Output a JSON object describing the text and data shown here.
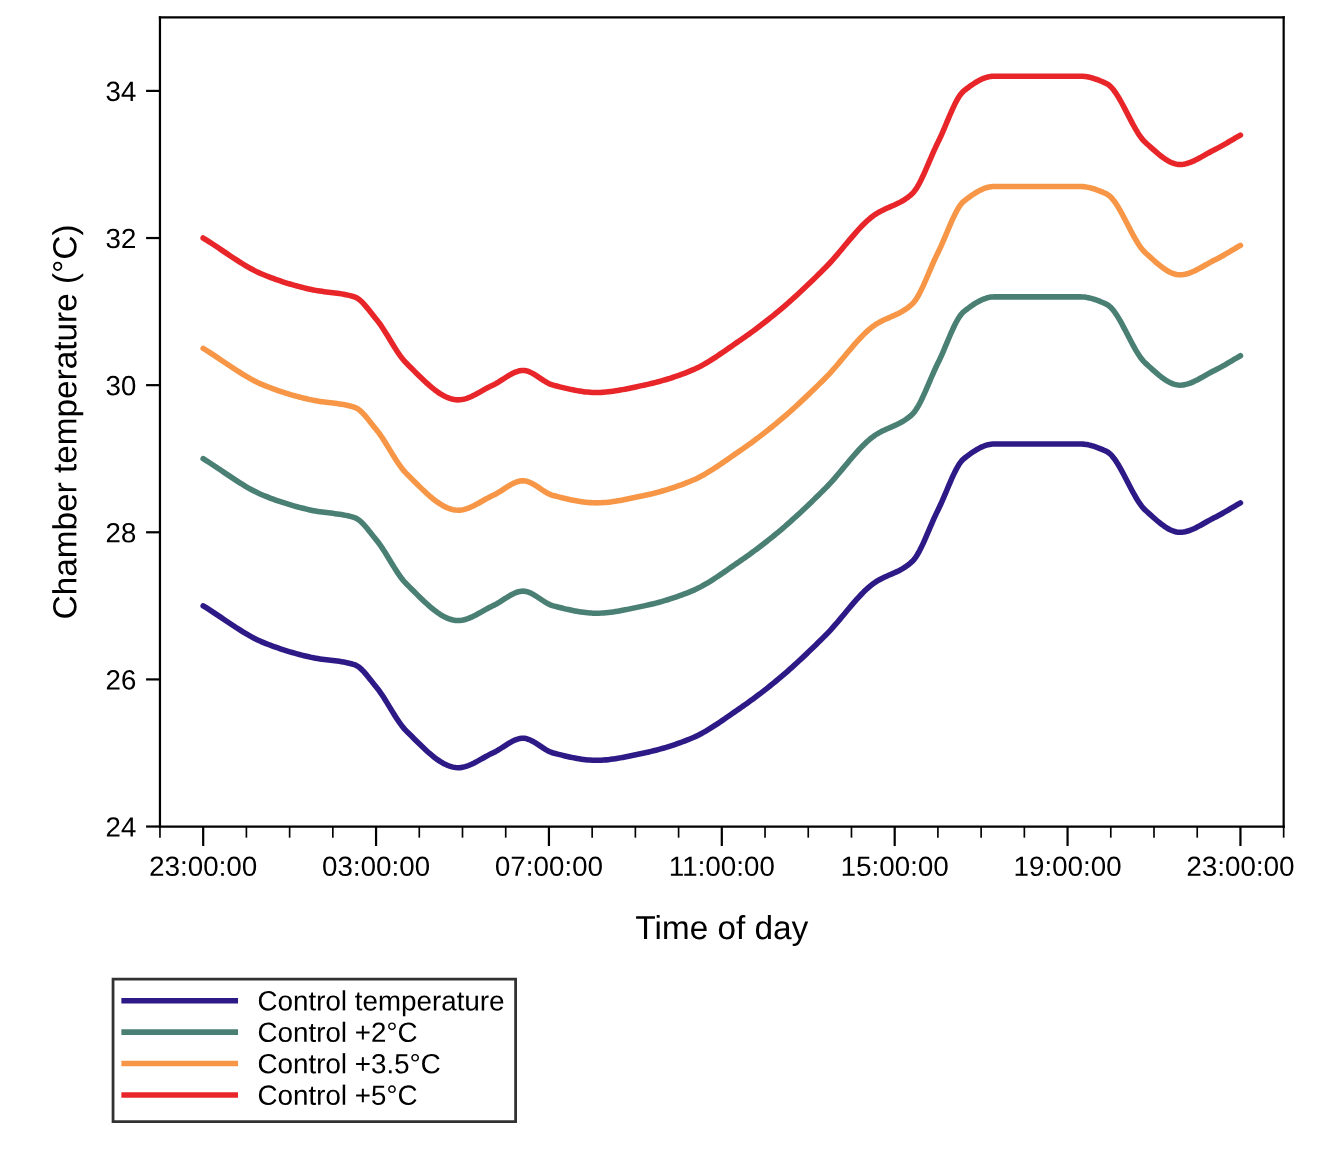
{
  "chart_data": {
    "type": "line",
    "xlabel": "Time of day",
    "ylabel": "Chamber temperature (°C)",
    "x": [
      "2000-01-01T23:00",
      "2000-01-02T00:24",
      "2000-01-02T01:30",
      "2000-01-02T02:30",
      "2000-01-02T03:00",
      "2000-01-02T03:42",
      "2000-01-02T04:54",
      "2000-01-02T05:42",
      "2000-01-02T06:24",
      "2000-01-02T07:06",
      "2000-01-02T08:06",
      "2000-01-02T09:12",
      "2000-01-02T10:18",
      "2000-01-02T11:24",
      "2000-01-02T12:18",
      "2000-01-02T13:24",
      "2000-01-02T14:30",
      "2000-01-02T15:24",
      "2000-01-02T16:00",
      "2000-01-02T16:36",
      "2000-01-02T17:18",
      "2000-01-02T18:21",
      "2000-01-02T19:18",
      "2000-01-02T19:54",
      "2000-01-02T20:48",
      "2000-01-02T21:36",
      "2000-01-02T22:24",
      "2000-01-02T23:00"
    ],
    "series": [
      {
        "name": "Control temperature",
        "color": "#2e1a87",
        "values": [
          27.0,
          26.5,
          26.3,
          26.2,
          25.9,
          25.3,
          24.8,
          25.0,
          25.2,
          25.0,
          24.9,
          25.0,
          25.2,
          25.6,
          26.0,
          26.6,
          27.3,
          27.6,
          28.3,
          29.0,
          29.2,
          29.2,
          29.2,
          29.1,
          28.3,
          28.0,
          28.2,
          28.4
        ]
      },
      {
        "name": "Control +2°C",
        "color": "#4a7f74",
        "values": [
          29.0,
          28.5,
          28.3,
          28.2,
          27.9,
          27.3,
          26.8,
          27.0,
          27.2,
          27.0,
          26.9,
          27.0,
          27.2,
          27.6,
          28.0,
          28.6,
          29.3,
          29.6,
          30.3,
          31.0,
          31.2,
          31.2,
          31.2,
          31.1,
          30.3,
          30.0,
          30.2,
          30.4
        ]
      },
      {
        "name": "Control +3.5°C",
        "color": "#f79646",
        "values": [
          30.5,
          30.0,
          29.8,
          29.7,
          29.4,
          28.8,
          28.3,
          28.5,
          28.7,
          28.5,
          28.4,
          28.5,
          28.7,
          29.1,
          29.5,
          30.1,
          30.8,
          31.1,
          31.8,
          32.5,
          32.7,
          32.7,
          32.7,
          32.6,
          31.8,
          31.5,
          31.7,
          31.9
        ]
      },
      {
        "name": "Control +5°C",
        "color": "#e8262a",
        "values": [
          32.0,
          31.5,
          31.3,
          31.2,
          30.9,
          30.3,
          29.8,
          30.0,
          30.2,
          30.0,
          29.9,
          30.0,
          30.2,
          30.6,
          31.0,
          31.6,
          32.3,
          32.6,
          33.3,
          34.0,
          34.2,
          34.2,
          34.2,
          34.1,
          33.3,
          33.0,
          33.2,
          33.4
        ]
      }
    ],
    "xlim": [
      "2000-01-01T22:00",
      "2000-01-03T00:00"
    ],
    "xticks": [
      {
        "value": "2000-01-01T23:00",
        "label": "23:00:00"
      },
      {
        "value": "2000-01-02T03:00",
        "label": "03:00:00"
      },
      {
        "value": "2000-01-02T07:00",
        "label": "07:00:00"
      },
      {
        "value": "2000-01-02T11:00",
        "label": "11:00:00"
      },
      {
        "value": "2000-01-02T15:00",
        "label": "15:00:00"
      },
      {
        "value": "2000-01-02T19:00",
        "label": "19:00:00"
      },
      {
        "value": "2000-01-02T23:00",
        "label": "23:00:00"
      }
    ],
    "ylim": [
      24,
      35
    ],
    "yticks": [
      24,
      26,
      28,
      30,
      32,
      34
    ],
    "grid": false,
    "legend": "bottom left",
    "marker": "none",
    "line_style": "solid"
  }
}
